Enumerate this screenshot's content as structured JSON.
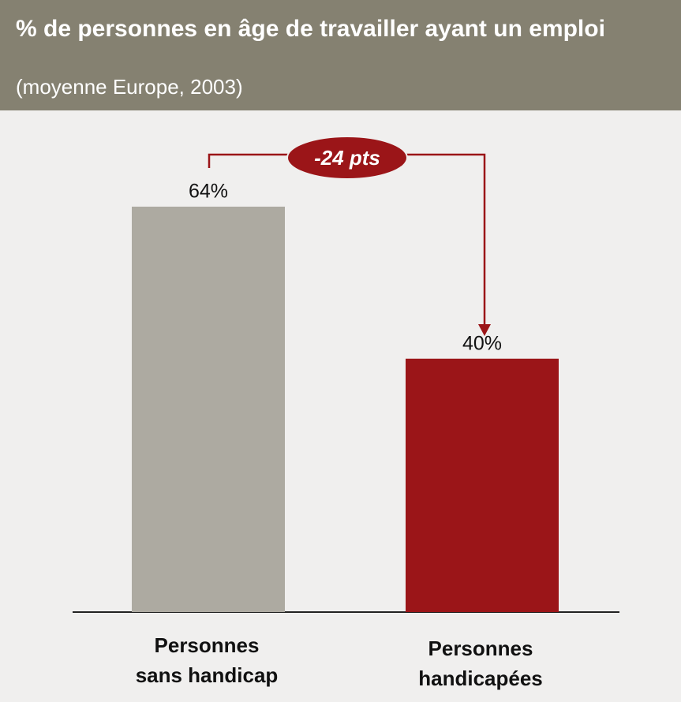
{
  "chart_data": {
    "type": "bar",
    "title": "% de personnes en âge de travailler ayant un emploi",
    "subtitle": "(moyenne Europe, 2003)",
    "categories": [
      [
        "Personnes",
        "sans handicap"
      ],
      [
        "Personnes",
        "handicapées"
      ]
    ],
    "values": [
      64,
      40
    ],
    "value_labels": [
      "64%",
      "40%"
    ],
    "colors": [
      "#adaaa1",
      "#9b1518"
    ],
    "annotation": "-24 pts"
  }
}
